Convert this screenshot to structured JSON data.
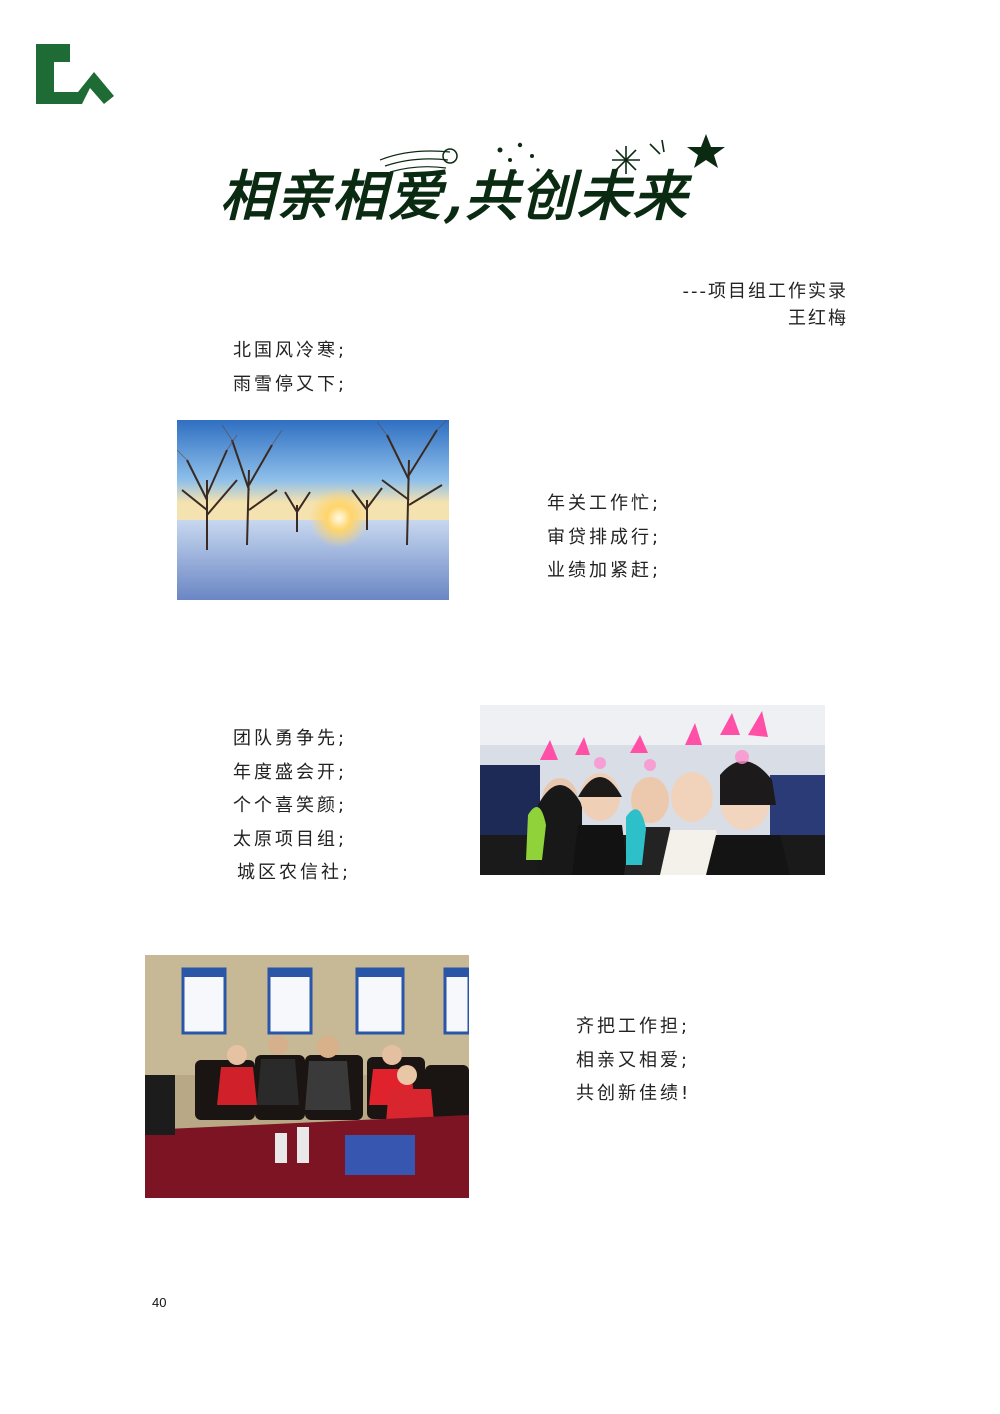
{
  "header": {
    "logo_icon": "company-logo-icon",
    "brand_color": "#1e6b35"
  },
  "title": {
    "text": "相亲相爱,共创未来",
    "color": "#0b2a12"
  },
  "byline": {
    "subtitle": "---项目组工作实录",
    "author": "王红梅"
  },
  "stanzas": [
    [
      "北国风冷寒;",
      "雨雪停又下;"
    ],
    [
      "年关工作忙;",
      "审贷排成行;",
      "业绩加紧赶;"
    ],
    [
      "团队勇争先;",
      "年度盛会开;",
      "个个喜笑颜;",
      "太原项目组;",
      " 城区农信社;"
    ],
    [
      "齐把工作担;",
      "相亲又相爱;",
      "共创新佳绩!"
    ]
  ],
  "photos": [
    {
      "name": "snowy-sunset-trees-photo"
    },
    {
      "name": "team-celebration-photo"
    },
    {
      "name": "meeting-room-photo"
    }
  ],
  "footer": {
    "page_number": "40"
  }
}
